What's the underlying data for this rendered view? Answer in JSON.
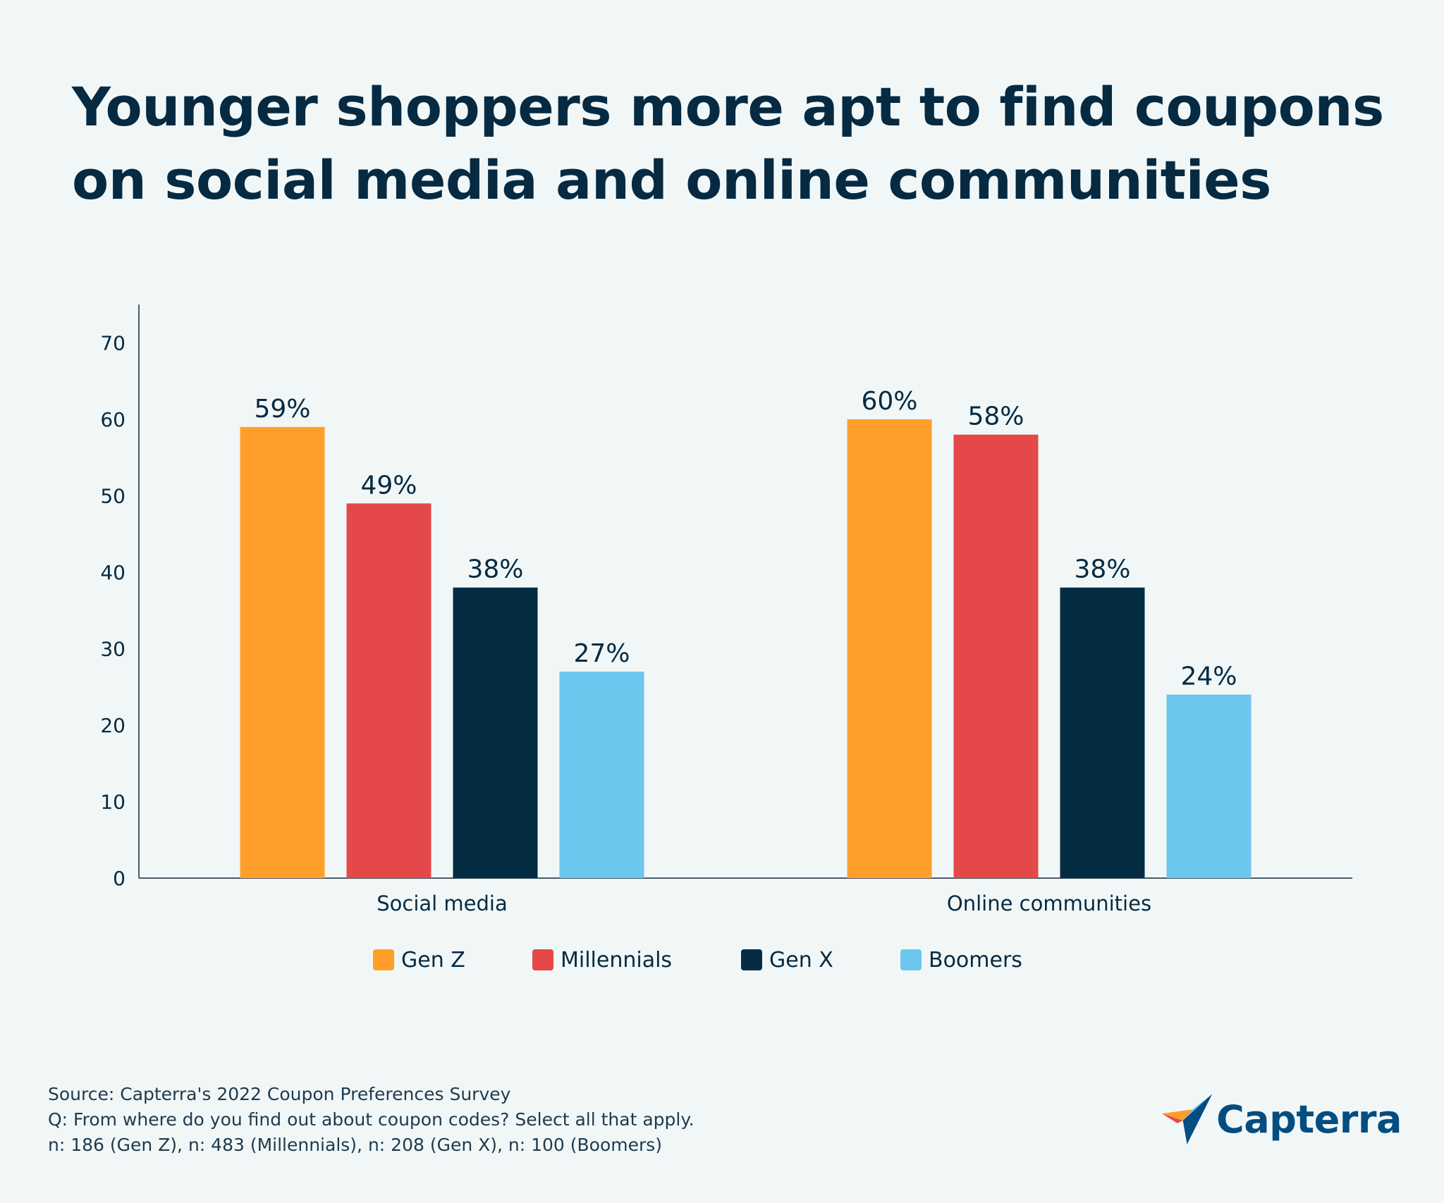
{
  "title_line1": "Younger shoppers more apt to find coupons",
  "title_line2": "on social media and online communities",
  "chart_data": {
    "type": "bar",
    "categories": [
      "Social media",
      "Online communities"
    ],
    "series": [
      {
        "name": "Gen Z",
        "color": "#ff9f2a",
        "values": [
          59,
          60
        ],
        "labels": [
          "59%",
          "60%"
        ]
      },
      {
        "name": "Millennials",
        "color": "#e54848",
        "values": [
          49,
          58
        ],
        "labels": [
          "49%",
          "58%"
        ]
      },
      {
        "name": "Gen X",
        "color": "#042c43",
        "values": [
          38,
          38
        ],
        "labels": [
          "38%",
          "38%"
        ]
      },
      {
        "name": "Boomers",
        "color": "#6cc6ee",
        "values": [
          27,
          24
        ],
        "labels": [
          "27%",
          "24%"
        ]
      }
    ],
    "ylim": [
      0,
      75
    ],
    "yticks": [
      0,
      10,
      20,
      30,
      40,
      50,
      60,
      70
    ],
    "xlabel": "",
    "ylabel": "",
    "grid": false,
    "legend": "bottom-center"
  },
  "footer": {
    "source": "Source: Capterra's 2022 Coupon Preferences Survey",
    "question": "Q: From where do you find out about coupon codes? Select all that apply.",
    "sample": "n: 186 (Gen Z), n: 483 (Millennials), n: 208 (Gen X), n: 100 (Boomers)"
  },
  "logo": {
    "text": "Capterra",
    "icon": "capterra-arrow-logo"
  }
}
